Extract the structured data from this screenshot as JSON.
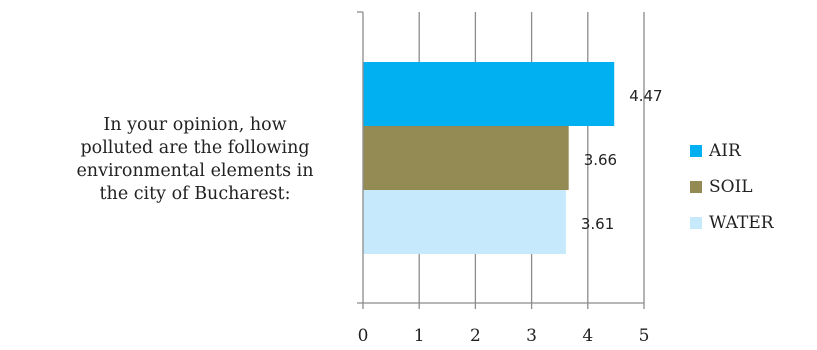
{
  "chart_data": {
    "type": "bar",
    "orientation": "horizontal",
    "category_label_lines": [
      "In your opinion, how",
      "polluted are the following",
      "environmental elements in",
      "the city of Bucharest:"
    ],
    "series": [
      {
        "name": "AIR",
        "value": 4.47,
        "value_label": "4.47",
        "color": "#00b0f0"
      },
      {
        "name": "SOIL",
        "value": 3.66,
        "value_label": "3.66",
        "color": "#948a54"
      },
      {
        "name": "WATER",
        "value": 3.61,
        "value_label": "3.61",
        "color": "#c6e9fb"
      }
    ],
    "x_ticks": [
      "0",
      "1",
      "2",
      "3",
      "4",
      "5"
    ],
    "xlim": [
      0,
      5
    ],
    "grid": "vertical",
    "legend_position": "right"
  }
}
